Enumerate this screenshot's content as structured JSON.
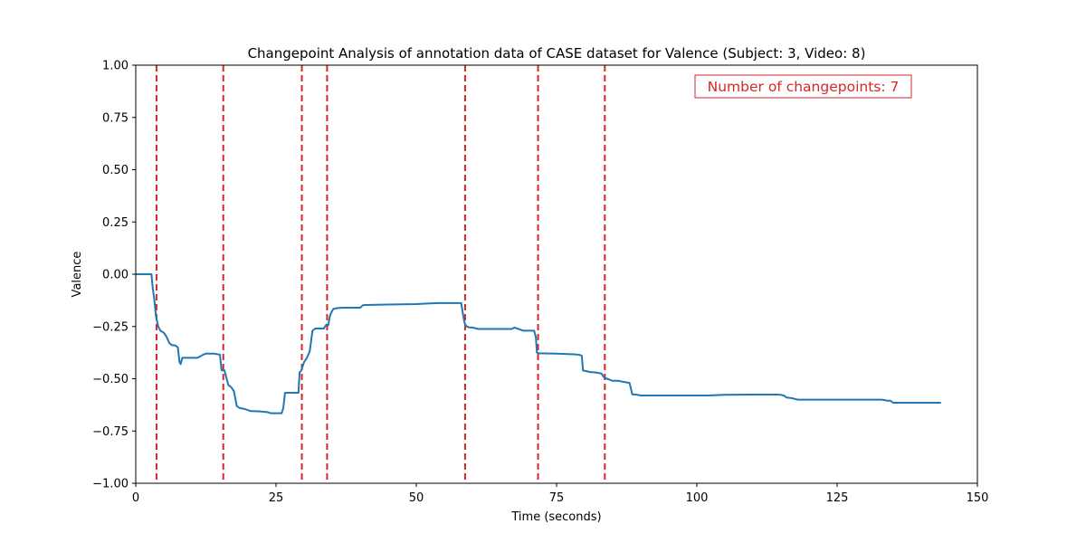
{
  "chart_data": {
    "type": "line",
    "title": "Changepoint Analysis of annotation data of CASE dataset for Valence (Subject: 3, Video: 8)",
    "xlabel": "Time (seconds)",
    "ylabel": "Valence",
    "xlim": [
      0,
      150
    ],
    "ylim": [
      -1.0,
      1.0
    ],
    "xticks": [
      0,
      25,
      50,
      75,
      100,
      125,
      150
    ],
    "xtick_labels": [
      "0",
      "25",
      "50",
      "75",
      "100",
      "125",
      "150"
    ],
    "yticks": [
      -1.0,
      -0.75,
      -0.5,
      -0.25,
      0.0,
      0.25,
      0.5,
      0.75,
      1.0
    ],
    "ytick_labels": [
      "−1.00",
      "−0.75",
      "−0.50",
      "−0.25",
      "0.00",
      "0.25",
      "0.50",
      "0.75",
      "1.00"
    ],
    "grid": false,
    "series": [
      {
        "color": "#1f77b4",
        "x": [
          0,
          2.8,
          3.0,
          3.3,
          3.6,
          4.0,
          4.4,
          5.0,
          5.5,
          6.0,
          6.5,
          7.0,
          7.5,
          7.8,
          8.0,
          8.3,
          9.0,
          10.0,
          11.0,
          12.0,
          12.5,
          13.0,
          14.0,
          15.0,
          15.3,
          15.8,
          16.2,
          16.5,
          17.0,
          17.5,
          18.0,
          18.5,
          19.5,
          20.5,
          22.0,
          23.5,
          24.0,
          25.5,
          26.0,
          26.3,
          26.6,
          27.0,
          28.0,
          29.0,
          29.2,
          29.5,
          30.0,
          30.5,
          31.0,
          31.5,
          32.0,
          33.5,
          34.0,
          34.3,
          34.6,
          35.0,
          35.3,
          36.0,
          37.0,
          38.0,
          40.0,
          40.5,
          41.0,
          45.0,
          50.0,
          52.0,
          54.0,
          58.0,
          58.5,
          58.7,
          59.0,
          59.5,
          60.0,
          61.0,
          62.0,
          63.0,
          65.0,
          67.0,
          67.5,
          68.0,
          68.5,
          69.0,
          71.0,
          71.3,
          71.5,
          71.8,
          75.0,
          78.0,
          79.0,
          79.5,
          79.7,
          80.0,
          81.0,
          82.0,
          83.0,
          83.5,
          84.0,
          84.5,
          85.0,
          86.0,
          87.0,
          88.0,
          88.5,
          89.0,
          90.0,
          95.0,
          100.0,
          102.0,
          105.0,
          110.0,
          114.5,
          115.0,
          115.5,
          116.0,
          117.0,
          117.5,
          118.0,
          120.0,
          125.0,
          130.0,
          133.0,
          134.0,
          134.5,
          135.0,
          135.5,
          136.0,
          140.0,
          143.5
        ],
        "y": [
          0.0,
          0.0,
          -0.06,
          -0.12,
          -0.2,
          -0.25,
          -0.27,
          -0.28,
          -0.3,
          -0.33,
          -0.34,
          -0.34,
          -0.35,
          -0.42,
          -0.43,
          -0.4,
          -0.4,
          -0.4,
          -0.4,
          -0.385,
          -0.38,
          -0.38,
          -0.38,
          -0.385,
          -0.46,
          -0.46,
          -0.5,
          -0.53,
          -0.54,
          -0.56,
          -0.63,
          -0.64,
          -0.645,
          -0.655,
          -0.656,
          -0.66,
          -0.665,
          -0.665,
          -0.665,
          -0.64,
          -0.567,
          -0.567,
          -0.567,
          -0.567,
          -0.47,
          -0.46,
          -0.42,
          -0.4,
          -0.37,
          -0.27,
          -0.26,
          -0.26,
          -0.24,
          -0.245,
          -0.2,
          -0.175,
          -0.165,
          -0.162,
          -0.16,
          -0.16,
          -0.16,
          -0.148,
          -0.147,
          -0.145,
          -0.143,
          -0.14,
          -0.138,
          -0.138,
          -0.22,
          -0.24,
          -0.25,
          -0.255,
          -0.255,
          -0.262,
          -0.262,
          -0.262,
          -0.262,
          -0.262,
          -0.255,
          -0.26,
          -0.265,
          -0.27,
          -0.27,
          -0.3,
          -0.375,
          -0.378,
          -0.38,
          -0.383,
          -0.385,
          -0.39,
          -0.46,
          -0.462,
          -0.468,
          -0.47,
          -0.475,
          -0.495,
          -0.5,
          -0.505,
          -0.51,
          -0.51,
          -0.515,
          -0.52,
          -0.575,
          -0.575,
          -0.58,
          -0.58,
          -0.58,
          -0.58,
          -0.577,
          -0.576,
          -0.576,
          -0.577,
          -0.58,
          -0.59,
          -0.593,
          -0.597,
          -0.6,
          -0.6,
          -0.6,
          -0.6,
          -0.6,
          -0.605,
          -0.605,
          -0.615,
          -0.615,
          -0.615,
          -0.615,
          -0.615
        ]
      }
    ],
    "changepoints": [
      3.7,
      15.6,
      29.6,
      34.1,
      58.7,
      71.7,
      83.6
    ],
    "changepoint_color": "#d62728",
    "annotation": {
      "text": "Number of changepoints: 7",
      "color": "#d62728",
      "placement": "top-right"
    }
  }
}
